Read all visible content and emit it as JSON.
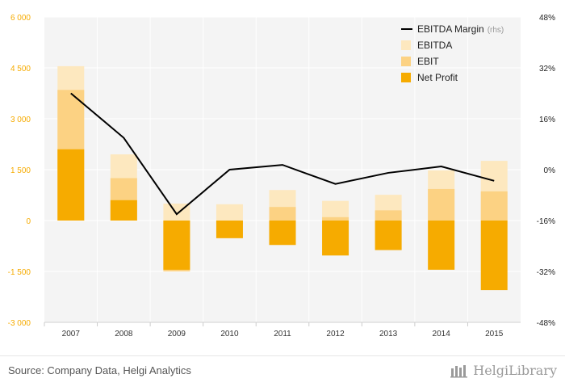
{
  "colors": {
    "ebitda": "#fde8bf",
    "ebit": "#fcd283",
    "net_profit": "#f6ab00",
    "margin_line": "#000000",
    "left_axis_text": "#f6ab00",
    "right_axis_text": "#222222",
    "plot_bg": "#f4f4f4",
    "gridline": "#ffffff"
  },
  "chart_data": {
    "type": "bar",
    "categories": [
      "2007",
      "2008",
      "2009",
      "2010",
      "2011",
      "2012",
      "2013",
      "2014",
      "2015"
    ],
    "left_axis": {
      "ylim": [
        -3000,
        6000
      ],
      "ticks": [
        6000,
        4500,
        3000,
        1500,
        0,
        -1500,
        -3000
      ],
      "tick_labels": [
        "6 000",
        "4 500",
        "3 000",
        "1 500",
        "0",
        "-1 500",
        "-3 000"
      ]
    },
    "right_axis": {
      "ylim": [
        -48,
        48
      ],
      "ticks": [
        48,
        32,
        16,
        0,
        -16,
        -32,
        -48
      ],
      "tick_labels": [
        "48%",
        "32%",
        "16%",
        "0%",
        "-16%",
        "-32%",
        "-48%"
      ]
    },
    "series": [
      {
        "name": "EBITDA",
        "kind": "bar",
        "values": [
          4550,
          1950,
          500,
          480,
          900,
          580,
          760,
          1480,
          1760
        ]
      },
      {
        "name": "EBIT",
        "kind": "bar",
        "values": [
          3850,
          1250,
          -1500,
          -100,
          400,
          100,
          300,
          930,
          860
        ]
      },
      {
        "name": "Net Profit",
        "kind": "bar",
        "values": [
          2100,
          600,
          -1450,
          -520,
          -720,
          -1030,
          -870,
          -1450,
          -2050
        ]
      },
      {
        "name": "EBITDA Margin",
        "name_suffix": "(rhs)",
        "kind": "line",
        "axis": "right",
        "values": [
          24,
          10,
          -14,
          0,
          1.5,
          -4.5,
          -1,
          1,
          -3.5
        ]
      }
    ],
    "legend": {
      "placement": "top-right",
      "items": [
        {
          "label": "EBITDA Margin",
          "suffix": "(rhs)",
          "marker": "line"
        },
        {
          "label": "EBITDA",
          "marker": "box"
        },
        {
          "label": "EBIT",
          "marker": "box"
        },
        {
          "label": "Net Profit",
          "marker": "box"
        }
      ]
    },
    "grid": true
  },
  "footer": {
    "source": "Source: Company Data, Helgi Analytics",
    "brand": "HelgiLibrary"
  }
}
